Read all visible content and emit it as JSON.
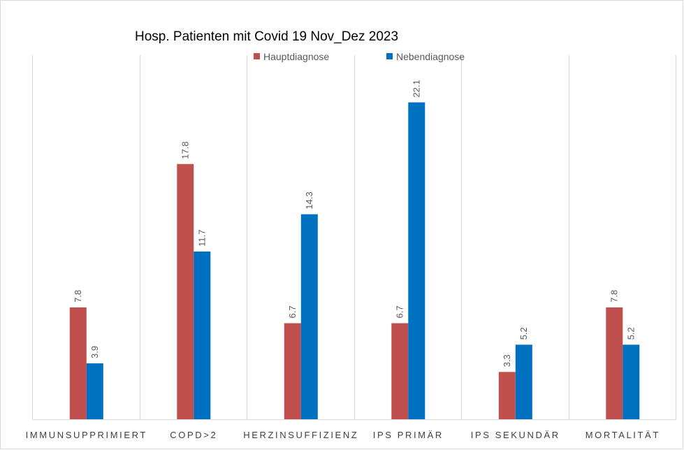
{
  "chart_data": {
    "type": "bar",
    "title": "Hosp. Patienten mit Covid 19 Nov_Dez 2023",
    "categories": [
      "IMMUNSUPPRIMIERT",
      "COPD>2",
      "HERZINSUFFIZIENZ",
      "IPS PRIMÄR",
      "IPS SEKUNDÄR",
      "MORTALITÄT"
    ],
    "series": [
      {
        "name": "Hauptdiagnose",
        "color": "#c0504d",
        "values": [
          7.8,
          17.8,
          6.7,
          6.7,
          3.3,
          7.8
        ]
      },
      {
        "name": "Nebendiagnose",
        "color": "#0070c0",
        "values": [
          3.9,
          11.7,
          14.3,
          22.1,
          5.2,
          5.2
        ]
      }
    ],
    "ylim": [
      0,
      25
    ],
    "legend_position": "top-right",
    "grid": "vertical category separators"
  }
}
